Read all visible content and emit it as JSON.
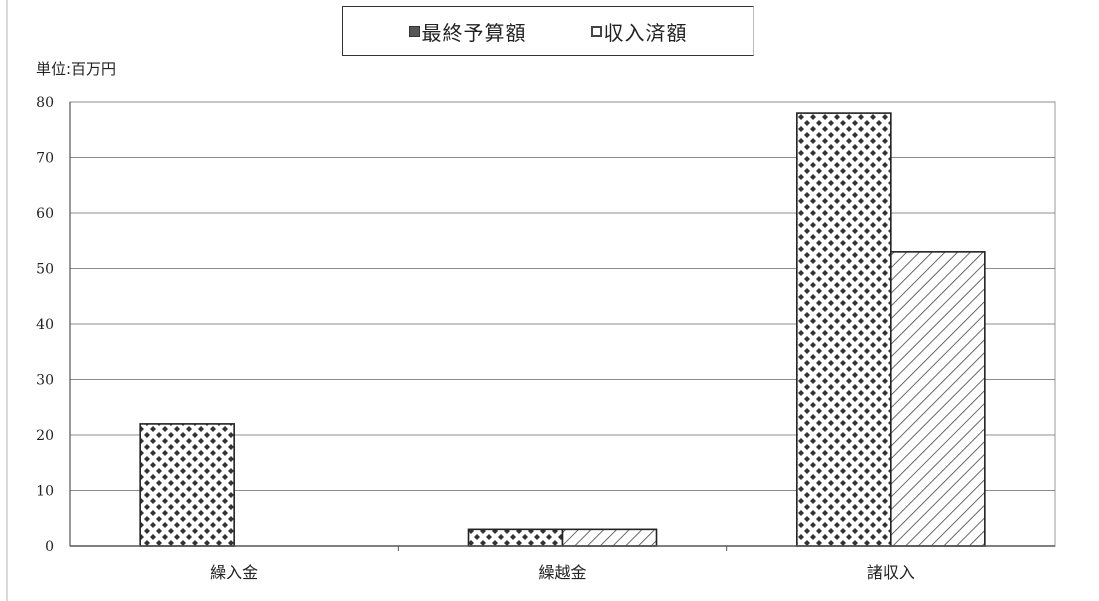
{
  "chart_data": {
    "type": "bar",
    "unit_label": "単位:百万円",
    "categories": [
      "繰入金",
      "繰越金",
      "諸収入"
    ],
    "series": [
      {
        "name": "最終予算額",
        "values": [
          22,
          3,
          78
        ],
        "pattern": "diamond-checker",
        "color": "#333333"
      },
      {
        "name": "収入済額",
        "values": [
          0,
          3,
          53
        ],
        "pattern": "diagonal-hatch",
        "color": "#444444"
      }
    ],
    "ylim": [
      0,
      80
    ],
    "yticks": [
      "0",
      "10",
      "20",
      "30",
      "40",
      "50",
      "60",
      "70",
      "80"
    ],
    "grid": true,
    "legend_position": "top"
  }
}
